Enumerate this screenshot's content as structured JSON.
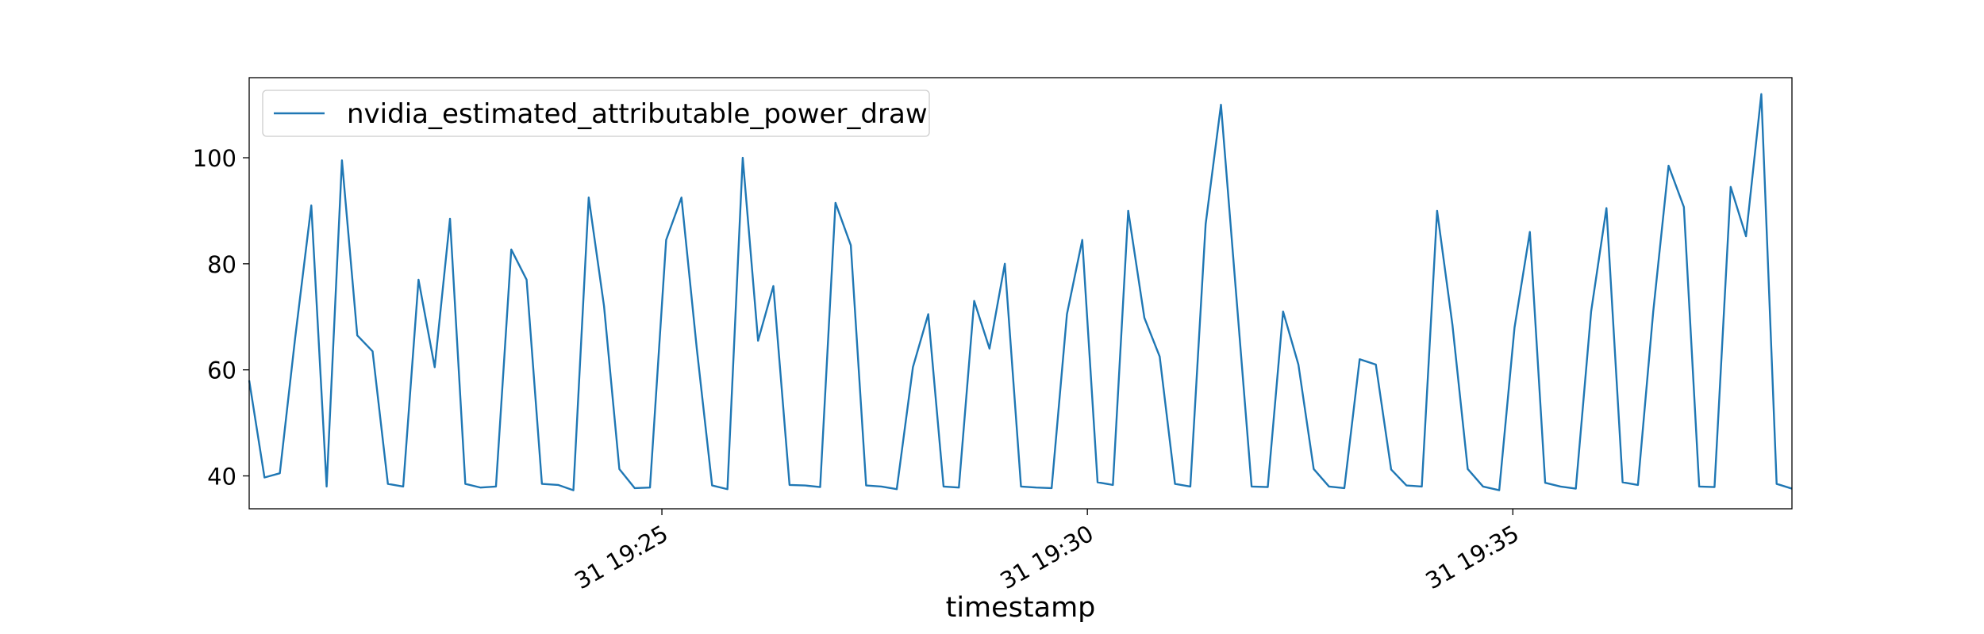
{
  "chart_data": {
    "type": "line",
    "xlabel": "timestamp",
    "x": [
      1160.15,
      1160.33,
      1160.51,
      1160.69,
      1160.88,
      1161.06,
      1161.24,
      1161.42,
      1161.6,
      1161.78,
      1161.96,
      1162.14,
      1162.33,
      1162.51,
      1162.69,
      1162.87,
      1163.05,
      1163.23,
      1163.41,
      1163.59,
      1163.78,
      1163.96,
      1164.14,
      1164.32,
      1164.5,
      1164.68,
      1164.86,
      1165.05,
      1165.23,
      1165.41,
      1165.59,
      1165.77,
      1165.95,
      1166.13,
      1166.31,
      1166.5,
      1166.68,
      1166.86,
      1167.04,
      1167.22,
      1167.4,
      1167.58,
      1167.76,
      1167.95,
      1168.13,
      1168.31,
      1168.49,
      1168.67,
      1168.85,
      1169.03,
      1169.22,
      1169.4,
      1169.58,
      1169.76,
      1169.94,
      1170.12,
      1170.3,
      1170.48,
      1170.67,
      1170.85,
      1171.03,
      1171.21,
      1171.39,
      1171.57,
      1171.75,
      1171.93,
      1172.12,
      1172.3,
      1172.48,
      1172.66,
      1172.84,
      1173.02,
      1173.2,
      1173.39,
      1173.57,
      1173.75,
      1173.93,
      1174.11,
      1174.29,
      1174.47,
      1174.65,
      1174.84,
      1175.02,
      1175.2,
      1175.38,
      1175.56,
      1175.74,
      1175.92,
      1176.1,
      1176.29,
      1176.47,
      1176.65,
      1176.83,
      1177.01,
      1177.19,
      1177.37,
      1177.56,
      1177.74,
      1177.92,
      1178.1,
      1178.28
    ],
    "series": [
      {
        "name": "nvidia_estimated_attributable_power_draw",
        "color": "#1f77b4",
        "values": [
          58,
          39.7,
          40.5,
          66,
          91,
          38,
          99.5,
          66.5,
          63.5,
          38.5,
          38,
          77,
          60.5,
          88.5,
          38.5,
          37.8,
          38,
          82.7,
          77,
          38.5,
          38.3,
          37.3,
          92.5,
          72,
          41.3,
          37.7,
          37.8,
          84.5,
          92.5,
          64,
          38.2,
          37.5,
          100,
          65.5,
          75.8,
          38.3,
          38.2,
          37.9,
          91.5,
          83.5,
          38.2,
          38,
          37.5,
          60.5,
          70.5,
          38,
          37.8,
          73,
          64,
          80,
          38,
          37.8,
          37.7,
          70.5,
          84.5,
          38.8,
          38.3,
          90,
          69.8,
          62.5,
          38.5,
          38,
          87.5,
          110,
          74,
          38,
          37.9,
          71,
          61,
          41.3,
          38,
          37.7,
          62,
          61,
          41.2,
          38.2,
          38,
          90,
          68.5,
          41.3,
          38,
          37.3,
          68,
          86,
          38.7,
          38,
          37.6,
          71,
          90.5,
          38.8,
          38.3,
          71,
          98.5,
          90.7,
          38,
          37.9,
          94.5,
          85.2,
          112,
          38.5,
          37.6
        ]
      }
    ],
    "xlim": [
      1160.15,
      1178.28
    ],
    "xticks": [
      {
        "value": 1165,
        "label": "31 19:25"
      },
      {
        "value": 1170,
        "label": "31 19:30"
      },
      {
        "value": 1175,
        "label": "31 19:35"
      }
    ],
    "ylim": [
      33.8,
      115.1
    ],
    "yticks": [
      40,
      60,
      80,
      100
    ],
    "grid": false,
    "legend": "upper left"
  }
}
